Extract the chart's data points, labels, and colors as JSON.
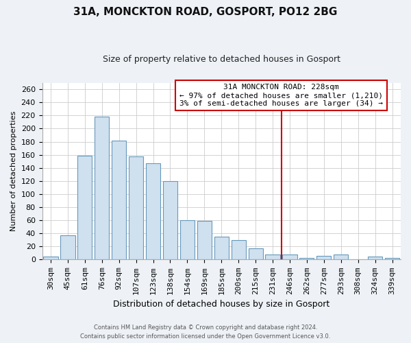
{
  "title": "31A, MONCKTON ROAD, GOSPORT, PO12 2BG",
  "subtitle": "Size of property relative to detached houses in Gosport",
  "xlabel": "Distribution of detached houses by size in Gosport",
  "ylabel": "Number of detached properties",
  "bar_labels": [
    "30sqm",
    "45sqm",
    "61sqm",
    "76sqm",
    "92sqm",
    "107sqm",
    "123sqm",
    "138sqm",
    "154sqm",
    "169sqm",
    "185sqm",
    "200sqm",
    "215sqm",
    "231sqm",
    "246sqm",
    "262sqm",
    "277sqm",
    "293sqm",
    "308sqm",
    "324sqm",
    "339sqm"
  ],
  "bar_values": [
    5,
    37,
    159,
    218,
    182,
    158,
    147,
    120,
    60,
    59,
    35,
    30,
    17,
    8,
    8,
    3,
    6,
    8,
    0,
    5,
    3
  ],
  "bar_color": "#cfe0ef",
  "bar_edge_color": "#6699bb",
  "vline_x_index": 13,
  "vline_color": "#cc0000",
  "annotation_title": "31A MONCKTON ROAD: 228sqm",
  "annotation_line1": "← 97% of detached houses are smaller (1,210)",
  "annotation_line2": "3% of semi-detached houses are larger (34) →",
  "ylim": [
    0,
    270
  ],
  "yticks": [
    0,
    20,
    40,
    60,
    80,
    100,
    120,
    140,
    160,
    180,
    200,
    220,
    240,
    260
  ],
  "footer1": "Contains HM Land Registry data © Crown copyright and database right 2024.",
  "footer2": "Contains public sector information licensed under the Open Government Licence v3.0.",
  "bg_color": "#eef2f7",
  "plot_bg_color": "#ffffff",
  "grid_color": "#cccccc",
  "title_fontsize": 11,
  "subtitle_fontsize": 9,
  "tick_fontsize": 8,
  "ylabel_fontsize": 8,
  "xlabel_fontsize": 9
}
